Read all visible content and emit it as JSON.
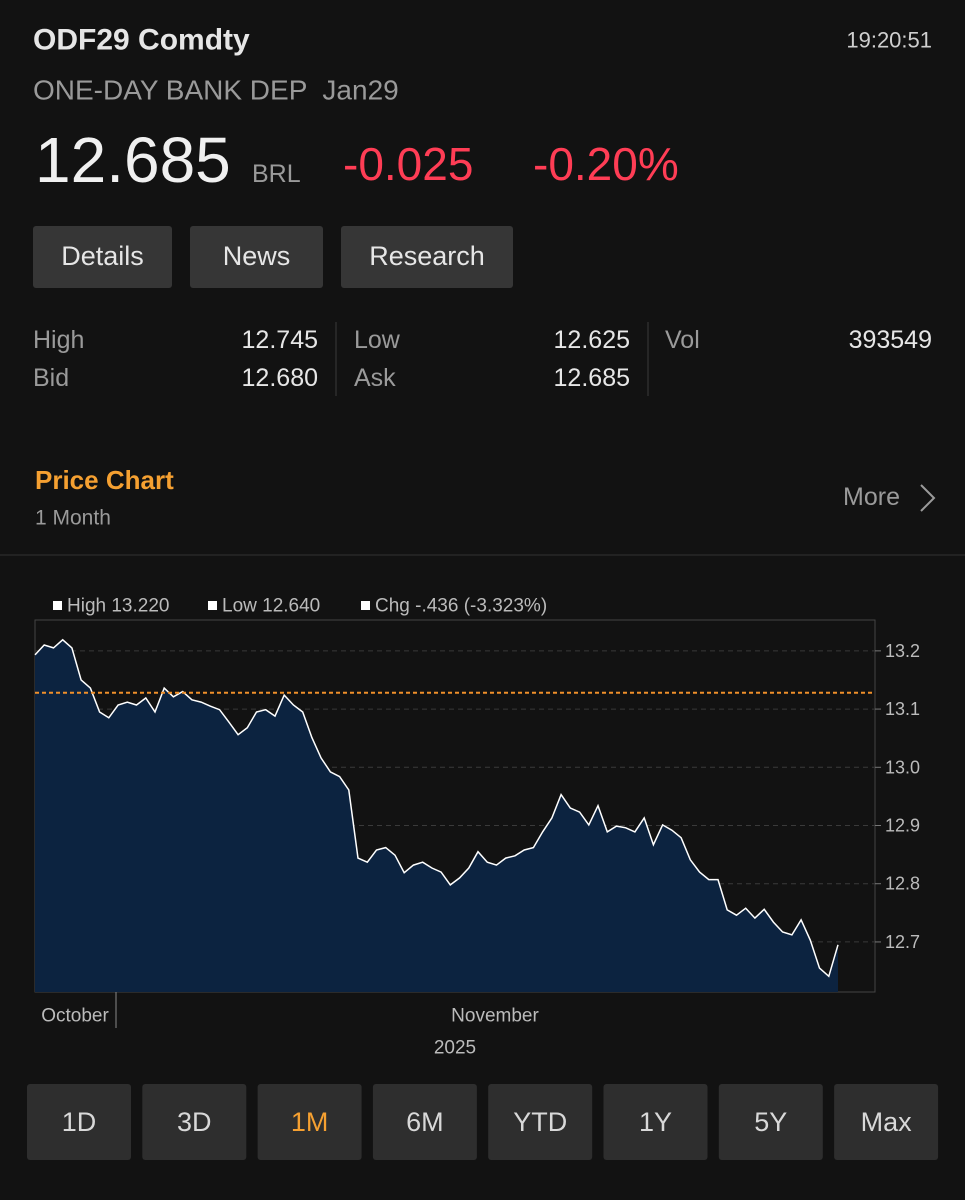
{
  "header": {
    "ticker": "ODF29 Comdty",
    "time": "19:20:51",
    "description": "ONE-DAY BANK DEP  Jan29",
    "price": "12.685",
    "currency": "BRL",
    "change": "-0.025",
    "change_pct": "-0.20%"
  },
  "tabs": [
    "Details",
    "News",
    "Research"
  ],
  "quote": [
    {
      "label": "High",
      "value": "12.745"
    },
    {
      "label": "Bid",
      "value": "12.680"
    },
    {
      "label": "Low",
      "value": "12.625"
    },
    {
      "label": "Ask",
      "value": "12.685"
    },
    {
      "label": "Vol",
      "value": "393549"
    }
  ],
  "price_chart": {
    "title": "Price Chart",
    "period": "1 Month",
    "more": "More"
  },
  "chart_data": {
    "type": "area",
    "color": "#0c2340",
    "line_color": "#ffffff",
    "stats": [
      "High 13.220",
      "Low 12.640",
      "Chg -.436 (-3.323%)"
    ],
    "x_labels": [
      "October",
      "November"
    ],
    "year": "2025",
    "values": [
      13.193,
      13.21,
      13.205,
      13.219,
      13.205,
      13.15,
      13.136,
      13.095,
      13.085,
      13.107,
      13.112,
      13.107,
      13.119,
      13.095,
      13.136,
      13.121,
      13.13,
      13.116,
      13.112,
      13.105,
      13.099,
      13.078,
      13.056,
      13.068,
      13.095,
      13.099,
      13.088,
      13.124,
      13.107,
      13.095,
      13.051,
      13.016,
      12.992,
      12.984,
      12.961,
      12.844,
      12.837,
      12.858,
      12.862,
      12.849,
      12.819,
      12.832,
      12.837,
      12.827,
      12.82,
      12.798,
      12.81,
      12.827,
      12.855,
      12.837,
      12.832,
      12.844,
      12.848,
      12.858,
      12.862,
      12.889,
      12.913,
      12.953,
      12.93,
      12.923,
      12.901,
      12.934,
      12.889,
      12.899,
      12.896,
      12.889,
      12.913,
      12.867,
      12.901,
      12.892,
      12.879,
      12.841,
      12.82,
      12.807,
      12.807,
      12.755,
      12.746,
      12.758,
      12.741,
      12.756,
      12.734,
      12.717,
      12.712,
      12.738,
      12.703,
      12.655,
      12.641,
      12.695
    ],
    "ref_line": 13.128,
    "ref_color": "#f0902a",
    "ylim": [
      12.614,
      13.253
    ],
    "yticks": [
      12.7,
      12.8,
      12.9,
      {
        "value": 13,
        "label": "13.0"
      },
      13.1,
      13.2
    ],
    "grid": true
  },
  "range_buttons": {
    "items": [
      "1D",
      "3D",
      "1M",
      "6M",
      "YTD",
      "1Y",
      "5Y",
      "Max"
    ],
    "selected": 2
  }
}
